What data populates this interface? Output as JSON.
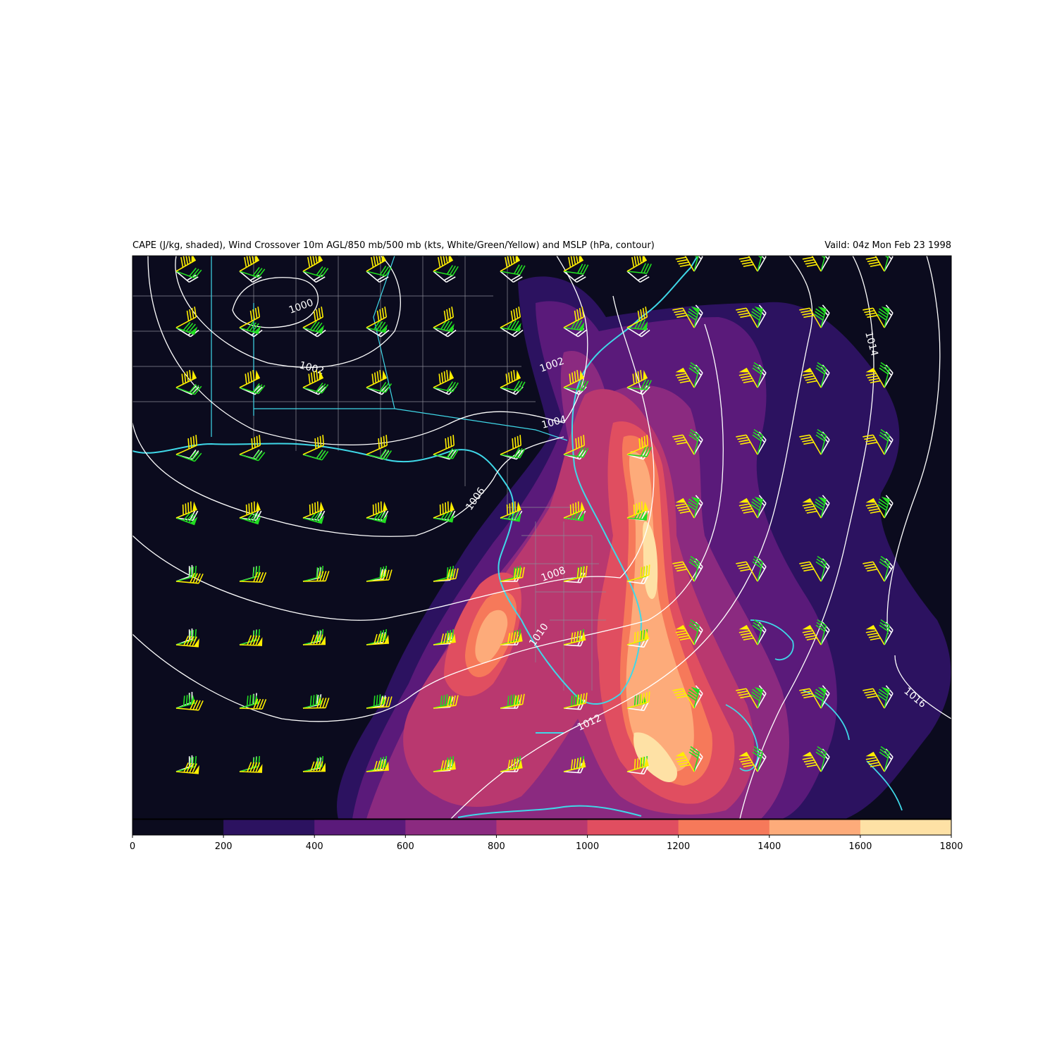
{
  "title_left": "CAPE (J/kg, shaded), Wind Crossover 10m AGL/850 mb/500 mb (kts, White/Green/Yellow) and MSLP (hPa, contour)",
  "title_right": "Vaild: 04z Mon Feb 23 1998",
  "colors": {
    "background": "#0b0b1e",
    "coastline": "#3fd8e8",
    "county_lines": "#8a8a96",
    "mslp": "#ffffff",
    "wind_10m": "#ffffff",
    "wind_850mb": "#22dd22",
    "wind_500mb": "#ffee00"
  },
  "colorbar": {
    "ticks": [
      "0",
      "200",
      "400",
      "600",
      "800",
      "1000",
      "1200",
      "1400",
      "1600",
      "1800"
    ],
    "colors": [
      "#0b0b1e",
      "#2c1260",
      "#5a1a7a",
      "#8b2a80",
      "#b9386f",
      "#e04e60",
      "#f6795a",
      "#fdab7a",
      "#fee1a5"
    ]
  },
  "mslp_labels": [
    "1000",
    "1002",
    "1004",
    "1006",
    "1008",
    "1010",
    "1012",
    "1014",
    "1016"
  ]
}
